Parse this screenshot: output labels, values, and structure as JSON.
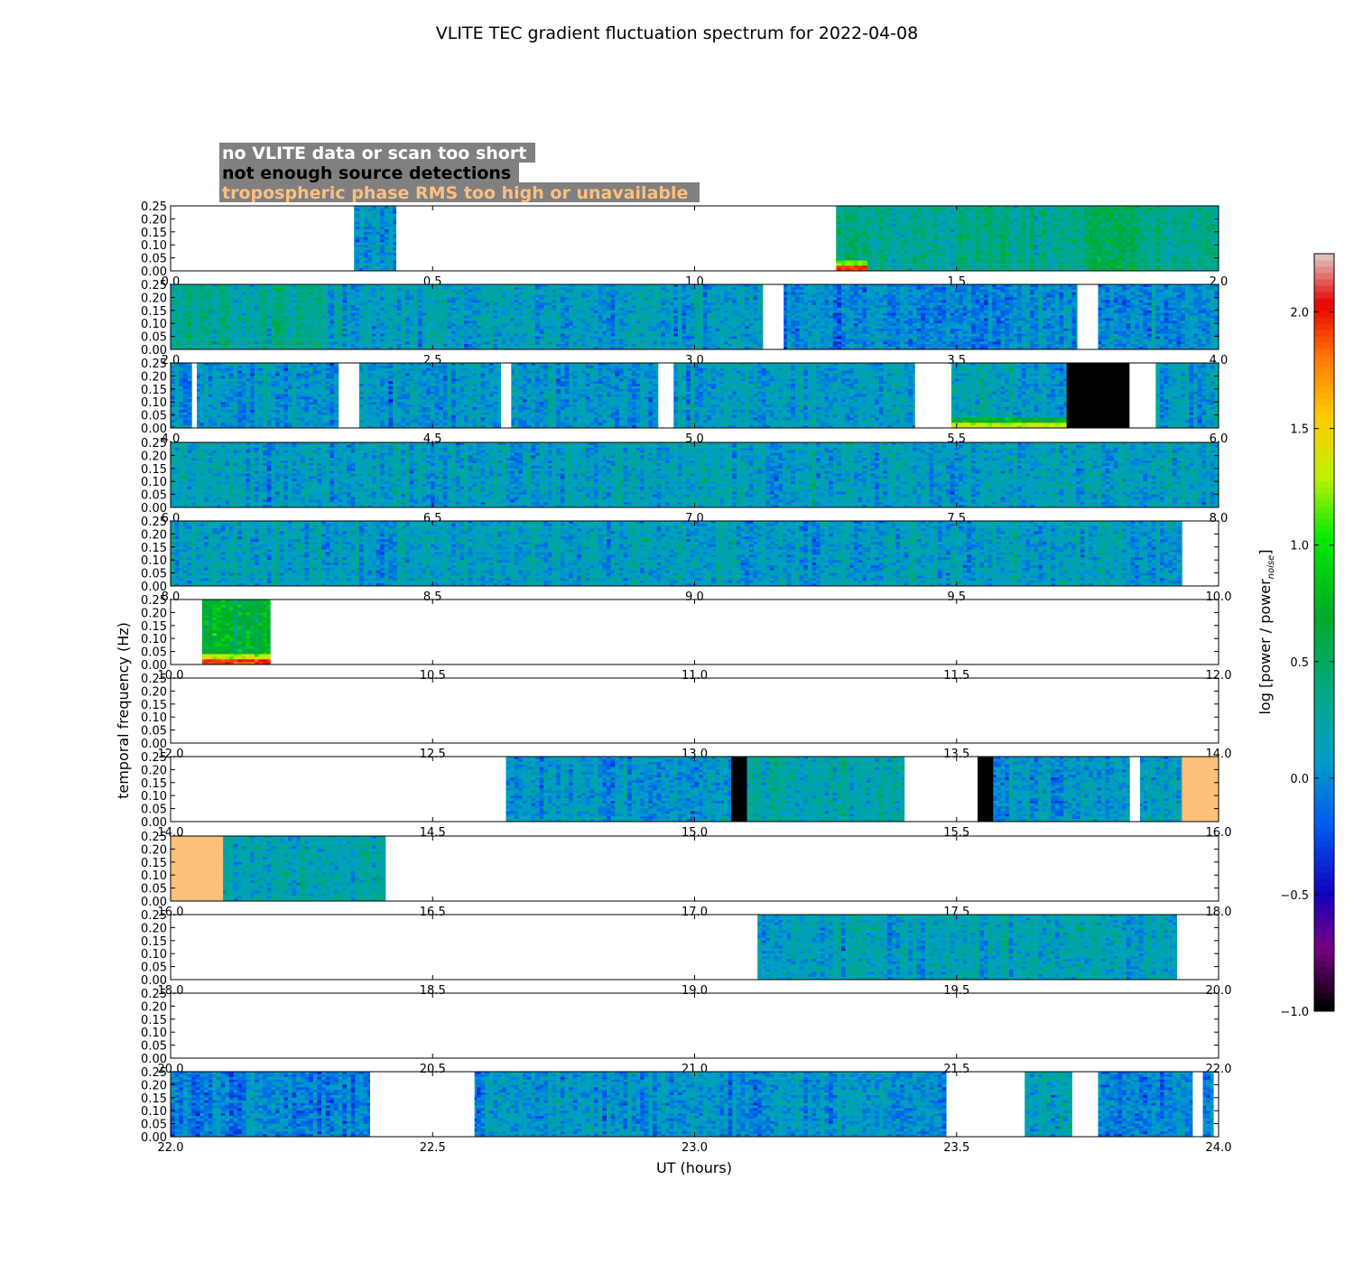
{
  "chart_data": {
    "type": "heatmap",
    "title": "VLITE TEC gradient fluctuation spectrum for 2022-04-08",
    "xlabel": "UT (hours)",
    "ylabel": "temporal frequency (Hz)",
    "colorbar_label": "log [power / power",
    "colorbar_label_subscript": "noise",
    "colorbar_label_suffix": "]",
    "colorbar_range": [
      -1.0,
      2.25
    ],
    "colorbar_ticks": [
      "2.0",
      "1.5",
      "1.0",
      "0.5",
      "0.0",
      "−0.5",
      "−1.0"
    ],
    "colorbar_tick_values": [
      2.0,
      1.5,
      1.0,
      0.5,
      0.0,
      -0.5,
      -1.0
    ],
    "y_range": [
      0,
      0.25
    ],
    "y_ticks": [
      "0.00",
      "0.05",
      "0.10",
      "0.15",
      "0.20",
      "0.25"
    ],
    "legend": [
      {
        "label": "no VLITE data or scan too short",
        "text_color": "#ffffff",
        "box_color": "#808080"
      },
      {
        "label": "not enough source detections",
        "text_color": "#000000",
        "box_color": "#808080"
      },
      {
        "label": "tropospheric phase RMS too high or unavailable",
        "text_color": "#ffbf7f",
        "box_color": "#808080"
      }
    ],
    "flag_colors": {
      "no_data": "#ffffff",
      "few_detections": "#000000",
      "tropo": "#ffc07a"
    },
    "panels": [
      {
        "xlim": [
          0,
          2
        ],
        "xticks": [
          "0.0",
          "0.5",
          "1.0",
          "1.5",
          "2.0"
        ],
        "segments": [
          {
            "x": [
              0.35,
              0.43
            ],
            "level": 0.05
          },
          {
            "x": [
              1.27,
              1.33
            ],
            "level": 0.35,
            "low_hot": 1.9
          },
          {
            "x": [
              1.33,
              1.55
            ],
            "level": 0.3
          },
          {
            "x": [
              1.55,
              1.75
            ],
            "level": 0.35
          },
          {
            "x": [
              1.75,
              1.85
            ],
            "level": 0.55
          },
          {
            "x": [
              1.85,
              2.0
            ],
            "level": 0.35
          }
        ],
        "flags": []
      },
      {
        "xlim": [
          2,
          4
        ],
        "xticks": [
          "2.0",
          "2.5",
          "3.0",
          "3.5",
          "4.0"
        ],
        "segments": [
          {
            "x": [
              2.0,
              2.3
            ],
            "level": 0.3
          },
          {
            "x": [
              2.3,
              3.13
            ],
            "level": 0.1
          },
          {
            "x": [
              3.17,
              3.73
            ],
            "level": 0.0
          },
          {
            "x": [
              3.77,
              4.0
            ],
            "level": 0.0
          }
        ],
        "flags": []
      },
      {
        "xlim": [
          4,
          6
        ],
        "xticks": [
          "4.0",
          "4.5",
          "5.0",
          "5.5",
          "6.0"
        ],
        "segments": [
          {
            "x": [
              4.0,
              4.04
            ],
            "level": 0.0
          },
          {
            "x": [
              4.05,
              4.32
            ],
            "level": 0.05
          },
          {
            "x": [
              4.36,
              4.63
            ],
            "level": 0.05
          },
          {
            "x": [
              4.65,
              4.93
            ],
            "level": 0.05
          },
          {
            "x": [
              4.96,
              5.42
            ],
            "level": 0.1
          },
          {
            "x": [
              5.49,
              5.71
            ],
            "level": 0.1,
            "low_hot": 1.3
          },
          {
            "x": [
              5.88,
              6.0
            ],
            "level": 0.1
          }
        ],
        "flags": [
          {
            "x": [
              5.71,
              5.83
            ],
            "kind": "few_detections"
          }
        ]
      },
      {
        "xlim": [
          6,
          8
        ],
        "xticks": [
          "6.0",
          "6.5",
          "7.0",
          "7.5",
          "8.0"
        ],
        "segments": [
          {
            "x": [
              6.0,
              8.0
            ],
            "level": 0.1
          }
        ],
        "flags": []
      },
      {
        "xlim": [
          8,
          10
        ],
        "xticks": [
          "8.0",
          "8.5",
          "9.0",
          "9.5",
          "10.0"
        ],
        "segments": [
          {
            "x": [
              8.0,
              9.93
            ],
            "level": 0.1
          }
        ],
        "flags": []
      },
      {
        "xlim": [
          10,
          12
        ],
        "xticks": [
          "10.0",
          "10.5",
          "11.0",
          "11.5",
          "12.0"
        ],
        "segments": [
          {
            "x": [
              10.06,
              10.19
            ],
            "level": 0.7,
            "low_hot": 1.9
          }
        ],
        "flags": []
      },
      {
        "xlim": [
          12,
          14
        ],
        "xticks": [
          "12.0",
          "12.5",
          "13.0",
          "13.5",
          "14.0"
        ],
        "segments": [],
        "flags": []
      },
      {
        "xlim": [
          14,
          16
        ],
        "xticks": [
          "14.0",
          "14.5",
          "15.0",
          "15.5",
          "16.0"
        ],
        "segments": [
          {
            "x": [
              14.64,
              15.07
            ],
            "level": 0.05
          },
          {
            "x": [
              15.1,
              15.4
            ],
            "level": 0.2
          },
          {
            "x": [
              15.57,
              15.83
            ],
            "level": 0.05
          },
          {
            "x": [
              15.85,
              15.93
            ],
            "level": 0.15
          }
        ],
        "flags": [
          {
            "x": [
              15.07,
              15.1
            ],
            "kind": "few_detections"
          },
          {
            "x": [
              15.54,
              15.57
            ],
            "kind": "few_detections"
          },
          {
            "x": [
              15.93,
              16.0
            ],
            "kind": "tropo"
          }
        ]
      },
      {
        "xlim": [
          16,
          18
        ],
        "xticks": [
          "16.0",
          "16.5",
          "17.0",
          "17.5",
          "18.0"
        ],
        "segments": [
          {
            "x": [
              16.1,
              16.41
            ],
            "level": 0.2
          }
        ],
        "flags": [
          {
            "x": [
              16.0,
              16.1
            ],
            "kind": "tropo"
          }
        ]
      },
      {
        "xlim": [
          18,
          20
        ],
        "xticks": [
          "18.0",
          "18.5",
          "19.0",
          "19.5",
          "20.0"
        ],
        "segments": [
          {
            "x": [
              19.12,
              19.92
            ],
            "level": 0.15
          }
        ],
        "flags": []
      },
      {
        "xlim": [
          20,
          22
        ],
        "xticks": [
          "20.0",
          "20.5",
          "21.0",
          "21.5",
          "22.0"
        ],
        "segments": [],
        "flags": []
      },
      {
        "xlim": [
          22,
          24
        ],
        "xticks": [
          "22.0",
          "22.5",
          "23.0",
          "23.5",
          "24.0"
        ],
        "segments": [
          {
            "x": [
              22.0,
              22.38
            ],
            "level": -0.05
          },
          {
            "x": [
              22.58,
              23.48
            ],
            "level": 0.05
          },
          {
            "x": [
              23.63,
              23.72
            ],
            "level": 0.15
          },
          {
            "x": [
              23.77,
              23.95
            ],
            "level": 0.0
          },
          {
            "x": [
              23.97,
              23.99
            ],
            "level": 0.0
          }
        ],
        "flags": []
      }
    ]
  }
}
